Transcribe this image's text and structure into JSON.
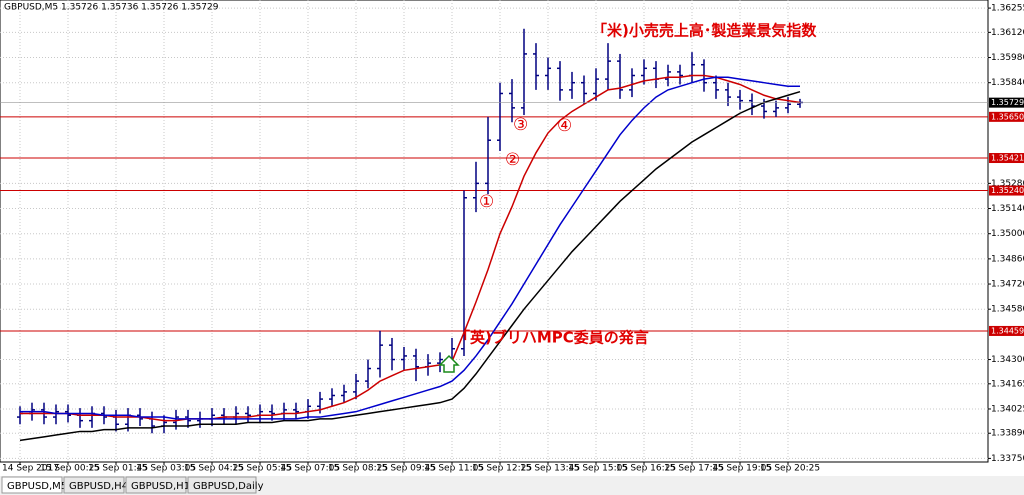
{
  "header": "GBPUSD,M5  1.35726 1.35736 1.35726 1.35729",
  "tabs": [
    "GBPUSD,M5",
    "GBPUSD,H4",
    "GBPUSD,H1",
    "GBPUSD,Daily"
  ],
  "chart_data": {
    "type": "ohlc",
    "color": "#000080",
    "categories": [
      "14 Sep 2017",
      null,
      null,
      null,
      "15 Sep 00:25",
      null,
      null,
      null,
      "15 Sep 01:45",
      null,
      null,
      null,
      "15 Sep 03:05",
      null,
      null,
      null,
      "15 Sep 04:25",
      null,
      null,
      null,
      "15 Sep 05:45",
      null,
      null,
      null,
      "15 Sep 07:05",
      null,
      null,
      null,
      "15 Sep 08:25",
      null,
      null,
      null,
      "15 Sep 09:45",
      null,
      null,
      null,
      "15 Sep 11:05",
      null,
      null,
      null,
      "15 Sep 12:25",
      null,
      null,
      null,
      "15 Sep 13:45",
      null,
      null,
      null,
      "15 Sep 15:05",
      null,
      null,
      null,
      "15 Sep 16:25",
      null,
      null,
      null,
      "15 Sep 17:45",
      null,
      null,
      null,
      "15 Sep 19:05",
      null,
      null,
      null,
      "15 Sep 20:25",
      null
    ],
    "open": [
      1.3398,
      1.34,
      1.3402,
      1.3398,
      1.3401,
      1.3399,
      1.3396,
      1.34,
      1.3398,
      1.3394,
      1.3399,
      1.3397,
      1.3393,
      1.3395,
      1.3398,
      1.3396,
      1.3397,
      1.3399,
      1.3398,
      1.34,
      1.3399,
      1.3401,
      1.34,
      1.3402,
      1.3401,
      1.3404,
      1.3408,
      1.341,
      1.3412,
      1.3418,
      1.3425,
      1.3438,
      1.343,
      1.3432,
      1.3426,
      1.3428,
      1.343,
      1.3436,
      1.352,
      1.3528,
      1.3552,
      1.3578,
      1.357,
      1.36,
      1.3588,
      1.3592,
      1.358,
      1.3584,
      1.3578,
      1.3586,
      1.3596,
      1.358,
      1.3588,
      1.3592,
      1.3586,
      1.359,
      1.3588,
      1.3594,
      1.3584,
      1.358,
      1.3576,
      1.3574,
      1.3571,
      1.3568,
      1.357,
      1.3572
    ],
    "high": [
      1.3404,
      1.3406,
      1.3406,
      1.3405,
      1.3405,
      1.3403,
      1.3404,
      1.3404,
      1.3402,
      1.3403,
      1.3403,
      1.3401,
      1.3399,
      1.3402,
      1.3402,
      1.3401,
      1.3403,
      1.3403,
      1.3404,
      1.3404,
      1.3405,
      1.3405,
      1.3406,
      1.3406,
      1.3408,
      1.3412,
      1.3414,
      1.3416,
      1.3422,
      1.343,
      1.3446,
      1.3442,
      1.3437,
      1.3436,
      1.3433,
      1.3434,
      1.3442,
      1.3524,
      1.354,
      1.3565,
      1.3584,
      1.3586,
      1.3614,
      1.3606,
      1.3598,
      1.3596,
      1.359,
      1.3588,
      1.3592,
      1.3606,
      1.36,
      1.3592,
      1.3597,
      1.3596,
      1.3594,
      1.3594,
      1.3601,
      1.3597,
      1.3588,
      1.3584,
      1.358,
      1.3578,
      1.3575,
      1.3574,
      1.3576,
      1.3575
    ],
    "low": [
      1.3394,
      1.3396,
      1.3394,
      1.3394,
      1.3395,
      1.3392,
      1.3392,
      1.3394,
      1.339,
      1.339,
      1.3393,
      1.3389,
      1.3389,
      1.3391,
      1.3392,
      1.3392,
      1.3393,
      1.3394,
      1.3394,
      1.3395,
      1.3395,
      1.3396,
      1.3396,
      1.3397,
      1.3397,
      1.34,
      1.3404,
      1.3406,
      1.3408,
      1.3414,
      1.342,
      1.3424,
      1.3424,
      1.3418,
      1.3421,
      1.3423,
      1.3426,
      1.3432,
      1.3512,
      1.3522,
      1.3546,
      1.3562,
      1.3566,
      1.358,
      1.358,
      1.3574,
      1.3575,
      1.3572,
      1.3574,
      1.358,
      1.3575,
      1.3576,
      1.3583,
      1.3581,
      1.3582,
      1.3583,
      1.3584,
      1.3579,
      1.3575,
      1.3571,
      1.3569,
      1.3566,
      1.3564,
      1.3565,
      1.3567,
      1.357
    ],
    "close": [
      1.34,
      1.3402,
      1.3398,
      1.3401,
      1.3399,
      1.3396,
      1.34,
      1.3398,
      1.3394,
      1.3399,
      1.3397,
      1.3393,
      1.3395,
      1.3398,
      1.3396,
      1.3397,
      1.3399,
      1.3398,
      1.34,
      1.3399,
      1.3401,
      1.34,
      1.3402,
      1.3401,
      1.3404,
      1.3408,
      1.341,
      1.3412,
      1.3418,
      1.3425,
      1.3438,
      1.343,
      1.3432,
      1.3426,
      1.3428,
      1.343,
      1.3436,
      1.352,
      1.3528,
      1.3552,
      1.3578,
      1.357,
      1.36,
      1.3588,
      1.3592,
      1.358,
      1.3584,
      1.3578,
      1.3586,
      1.3596,
      1.358,
      1.3588,
      1.3592,
      1.3586,
      1.359,
      1.3588,
      1.3594,
      1.3584,
      1.358,
      1.3576,
      1.3574,
      1.3571,
      1.3568,
      1.357,
      1.3572,
      1.3573
    ],
    "lines": [
      {
        "color": "#cc0000",
        "values": [
          1.34,
          1.34,
          1.34,
          1.34,
          1.34,
          1.3399,
          1.3399,
          1.3399,
          1.3398,
          1.3398,
          1.3398,
          1.3397,
          1.3396,
          1.3396,
          1.3397,
          1.3397,
          1.3397,
          1.3398,
          1.3398,
          1.3398,
          1.3399,
          1.3399,
          1.34,
          1.34,
          1.3401,
          1.3402,
          1.3404,
          1.3406,
          1.3409,
          1.3413,
          1.3418,
          1.3421,
          1.3424,
          1.3425,
          1.3426,
          1.3427,
          1.3429,
          1.3445,
          1.3462,
          1.348,
          1.35,
          1.3515,
          1.3532,
          1.3545,
          1.3556,
          1.3563,
          1.3568,
          1.3572,
          1.3576,
          1.358,
          1.3581,
          1.3583,
          1.3585,
          1.3586,
          1.3587,
          1.3587,
          1.3588,
          1.3588,
          1.3587,
          1.3585,
          1.3583,
          1.358,
          1.3577,
          1.3575,
          1.3574,
          1.3573
        ]
      },
      {
        "color": "#0000cc",
        "values": [
          1.3401,
          1.3401,
          1.3401,
          1.34,
          1.34,
          1.34,
          1.34,
          1.3399,
          1.3399,
          1.3399,
          1.3398,
          1.3398,
          1.3398,
          1.3397,
          1.3397,
          1.3397,
          1.3397,
          1.3397,
          1.3397,
          1.3397,
          1.3397,
          1.3397,
          1.3397,
          1.3397,
          1.3398,
          1.3398,
          1.3399,
          1.34,
          1.3401,
          1.3403,
          1.3405,
          1.3407,
          1.3409,
          1.3411,
          1.3413,
          1.3415,
          1.3418,
          1.3424,
          1.3432,
          1.3441,
          1.3451,
          1.3461,
          1.3472,
          1.3483,
          1.3494,
          1.3505,
          1.3515,
          1.3525,
          1.3535,
          1.3545,
          1.3555,
          1.3563,
          1.357,
          1.3576,
          1.358,
          1.3582,
          1.3584,
          1.3586,
          1.3587,
          1.3587,
          1.3586,
          1.3585,
          1.3584,
          1.3583,
          1.3582,
          1.3582
        ]
      },
      {
        "color": "#000000",
        "values": [
          1.3385,
          1.3386,
          1.3387,
          1.3388,
          1.3389,
          1.339,
          1.339,
          1.3391,
          1.3391,
          1.3392,
          1.3392,
          1.3392,
          1.3393,
          1.3393,
          1.3393,
          1.3394,
          1.3394,
          1.3394,
          1.3394,
          1.3395,
          1.3395,
          1.3395,
          1.3396,
          1.3396,
          1.3396,
          1.3397,
          1.3397,
          1.3398,
          1.3399,
          1.34,
          1.3401,
          1.3402,
          1.3403,
          1.3404,
          1.3405,
          1.3406,
          1.3408,
          1.3414,
          1.3422,
          1.3431,
          1.344,
          1.3449,
          1.3458,
          1.3466,
          1.3474,
          1.3482,
          1.349,
          1.3497,
          1.3504,
          1.3511,
          1.3518,
          1.3524,
          1.353,
          1.3536,
          1.3541,
          1.3546,
          1.3551,
          1.3555,
          1.3559,
          1.3563,
          1.3567,
          1.357,
          1.3573,
          1.3575,
          1.3577,
          1.3579
        ]
      }
    ],
    "ylim": [
      1.3373,
      1.363
    ],
    "yticks": [
      1.36255,
      {
        "value": 1.3612,
        "label": "1.36120"
      },
      {
        "value": 1.3598,
        "label": "1.35980"
      },
      {
        "value": 1.3584,
        "label": "1.35840"
      },
      {
        "value": 1.3528,
        "label": "1.35280"
      },
      {
        "value": 1.3514,
        "label": "1.35140"
      },
      {
        "value": 1.35,
        "label": "1.35000"
      },
      {
        "value": 1.3486,
        "label": "1.34860"
      },
      {
        "value": 1.3472,
        "label": "1.34720"
      },
      {
        "value": 1.3458,
        "label": "1.34580"
      },
      {
        "value": 1.343,
        "label": "1.34300"
      },
      1.34165,
      1.34025,
      {
        "value": 1.3389,
        "label": "1.33890"
      },
      {
        "value": 1.3375,
        "label": "1.33750"
      }
    ],
    "grid": true,
    "level_color": "#cc0000",
    "levels": [
      {
        "value": 1.3565,
        "label": "1.35650"
      },
      1.35421,
      {
        "value": 1.3524,
        "label": "1.35240"
      },
      1.34459
    ],
    "last_price": 1.35729,
    "annotations": [
      "「米)小売売上高･製造業景気指数",
      "「英)ブリハMPC委員の発言",
      "①",
      "②",
      "③",
      "④"
    ]
  }
}
